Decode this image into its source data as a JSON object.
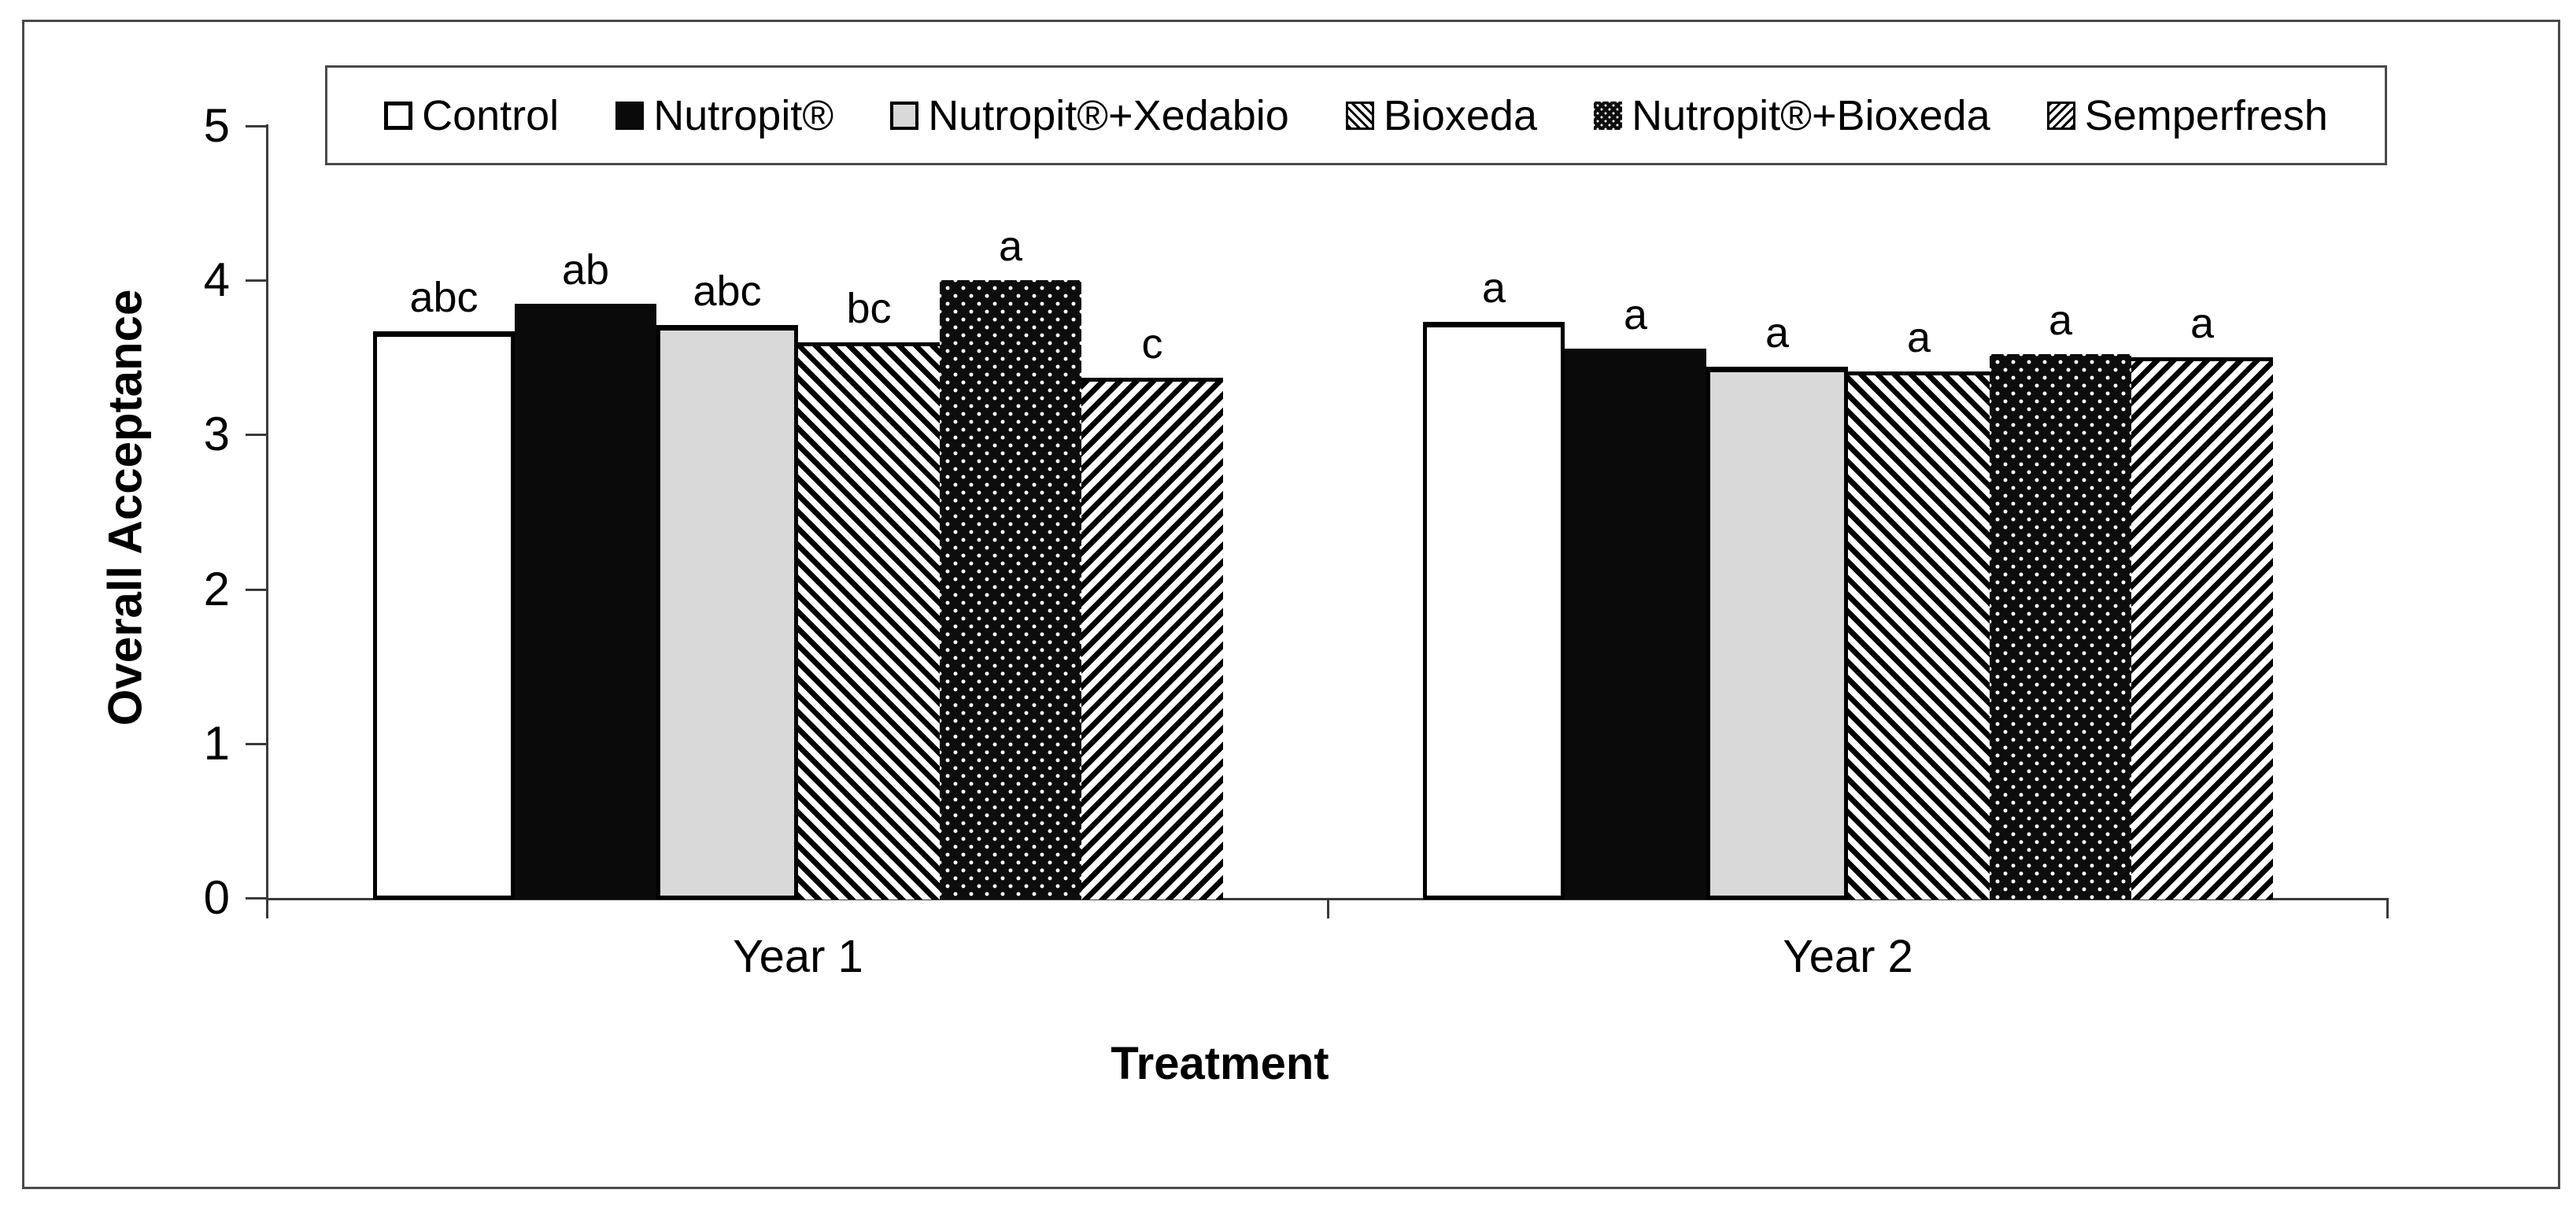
{
  "chart_data": {
    "type": "bar",
    "title": "",
    "xlabel": "Treatment",
    "ylabel": "Overall Acceptance",
    "ylim": [
      0,
      5
    ],
    "yticks": [
      0,
      1,
      2,
      3,
      4,
      5
    ],
    "grid": false,
    "legend_position": "top",
    "groups": [
      "Year 1",
      "Year 2"
    ],
    "series": [
      {
        "name": "Control",
        "pattern": "white",
        "values": [
          3.67,
          3.73
        ],
        "sig_labels": [
          "abc",
          "a"
        ]
      },
      {
        "name": "Nutropit®",
        "pattern": "solid-black",
        "values": [
          3.85,
          3.56
        ],
        "sig_labels": [
          "ab",
          "a"
        ]
      },
      {
        "name": "Nutropit®+Xedabio",
        "pattern": "light-gray",
        "values": [
          3.71,
          3.44
        ],
        "sig_labels": [
          "abc",
          "a"
        ]
      },
      {
        "name": "Bioxeda",
        "pattern": "diagonal-back",
        "values": [
          3.6,
          3.41
        ],
        "sig_labels": [
          "bc",
          "a"
        ]
      },
      {
        "name": "Nutropit®+Bioxeda",
        "pattern": "black-dots",
        "values": [
          4.0,
          3.52
        ],
        "sig_labels": [
          "a",
          "a"
        ]
      },
      {
        "name": "Semperfresh",
        "pattern": "diagonal-fwd",
        "values": [
          3.37,
          3.5
        ],
        "sig_labels": [
          "c",
          "a"
        ]
      }
    ],
    "colors": {
      "foreground": "#000000",
      "background": "#ffffff",
      "gray_fill": "#d9d9d9",
      "frame": "#4a4a4a"
    }
  }
}
